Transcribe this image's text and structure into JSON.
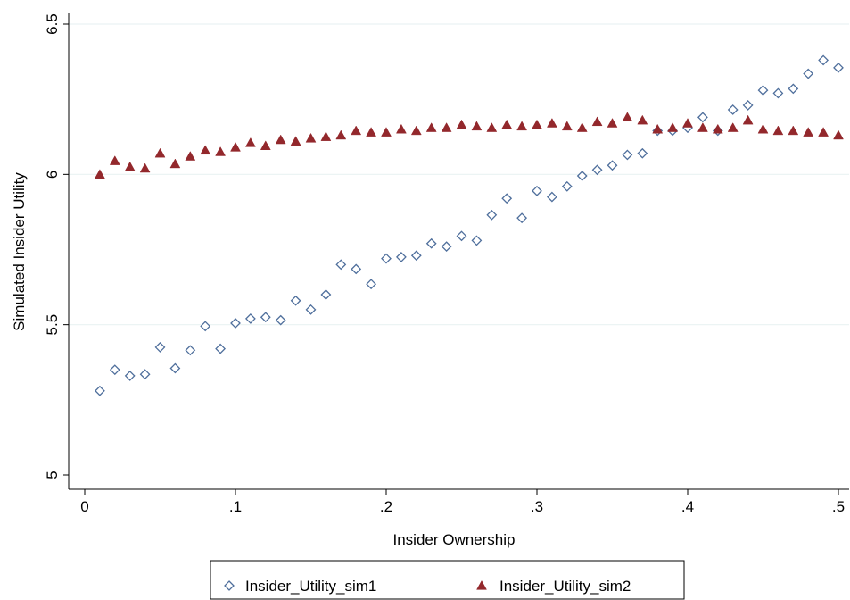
{
  "chart_data": {
    "type": "scatter",
    "xlabel": "Insider Ownership",
    "ylabel": "Simulated Insider Utility",
    "xlim": [
      0,
      0.5
    ],
    "ylim": [
      5,
      6.5
    ],
    "x_ticks": [
      0,
      0.1,
      0.2,
      0.3,
      0.4,
      0.5
    ],
    "x_tick_labels": [
      "0",
      ".1",
      ".2",
      ".3",
      ".4",
      ".5"
    ],
    "y_ticks": [
      5,
      5.5,
      6,
      6.5
    ],
    "y_tick_labels": [
      "5",
      "5.5",
      "6",
      "6.5"
    ],
    "grid": "horizontal",
    "legend_position": "bottom",
    "series": [
      {
        "name": "Insider_Utility_sim1",
        "marker": "hollow-diamond",
        "color": "#4f6f9c",
        "x": [
          0.01,
          0.02,
          0.03,
          0.04,
          0.05,
          0.06,
          0.07,
          0.08,
          0.09,
          0.1,
          0.11,
          0.12,
          0.13,
          0.14,
          0.15,
          0.16,
          0.17,
          0.18,
          0.19,
          0.2,
          0.21,
          0.22,
          0.23,
          0.24,
          0.25,
          0.26,
          0.27,
          0.28,
          0.29,
          0.3,
          0.31,
          0.32,
          0.33,
          0.34,
          0.35,
          0.36,
          0.37,
          0.38,
          0.39,
          0.4,
          0.41,
          0.42,
          0.43,
          0.44,
          0.45,
          0.46,
          0.47,
          0.48,
          0.49,
          0.5
        ],
        "y": [
          5.28,
          5.35,
          5.33,
          5.335,
          5.425,
          5.355,
          5.415,
          5.495,
          5.42,
          5.505,
          5.52,
          5.525,
          5.515,
          5.58,
          5.55,
          5.6,
          5.7,
          5.685,
          5.635,
          5.72,
          5.725,
          5.73,
          5.77,
          5.76,
          5.795,
          5.78,
          5.865,
          5.92,
          5.855,
          5.945,
          5.925,
          5.96,
          5.995,
          6.015,
          6.03,
          6.065,
          6.07,
          6.145,
          6.145,
          6.155,
          6.19,
          6.145,
          6.215,
          6.23,
          6.28,
          6.27,
          6.285,
          6.335,
          6.38,
          6.355
        ]
      },
      {
        "name": "Insider_Utility_sim2",
        "marker": "filled-triangle",
        "color": "#93282c",
        "x": [
          0.01,
          0.02,
          0.03,
          0.04,
          0.05,
          0.06,
          0.07,
          0.08,
          0.09,
          0.1,
          0.11,
          0.12,
          0.13,
          0.14,
          0.15,
          0.16,
          0.17,
          0.18,
          0.19,
          0.2,
          0.21,
          0.22,
          0.23,
          0.24,
          0.25,
          0.26,
          0.27,
          0.28,
          0.29,
          0.3,
          0.31,
          0.32,
          0.33,
          0.34,
          0.35,
          0.36,
          0.37,
          0.38,
          0.39,
          0.4,
          0.41,
          0.42,
          0.43,
          0.44,
          0.45,
          0.46,
          0.47,
          0.48,
          0.49,
          0.5
        ],
        "y": [
          6.0,
          6.045,
          6.025,
          6.02,
          6.07,
          6.035,
          6.06,
          6.08,
          6.075,
          6.09,
          6.105,
          6.095,
          6.115,
          6.11,
          6.12,
          6.125,
          6.13,
          6.145,
          6.14,
          6.14,
          6.15,
          6.145,
          6.155,
          6.155,
          6.165,
          6.16,
          6.155,
          6.165,
          6.16,
          6.165,
          6.17,
          6.16,
          6.155,
          6.175,
          6.17,
          6.19,
          6.18,
          6.15,
          6.155,
          6.17,
          6.155,
          6.15,
          6.155,
          6.18,
          6.15,
          6.145,
          6.145,
          6.14,
          6.14,
          6.13
        ]
      }
    ]
  }
}
